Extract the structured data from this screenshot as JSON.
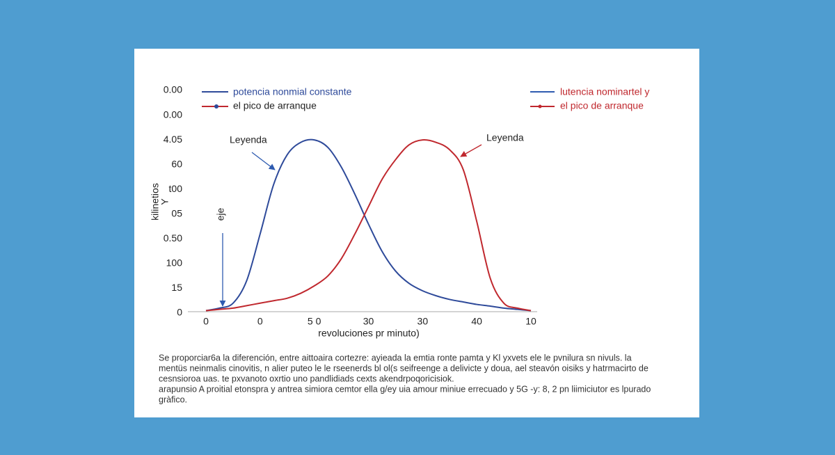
{
  "chart_data": {
    "type": "line",
    "x": [
      0,
      0.25,
      0.5,
      0.75,
      1,
      1.25,
      1.5,
      1.75,
      2,
      2.25,
      2.5,
      2.75,
      3,
      3.25,
      3.5,
      3.75,
      4,
      4.25,
      4.5,
      4.75,
      5,
      5.25,
      5.5,
      5.75,
      6
    ],
    "xlim": [
      0,
      6
    ],
    "xticks": [
      {
        "value": 0,
        "label": "0"
      },
      {
        "value": 1,
        "label": "0"
      },
      {
        "value": 2,
        "label": "5 0"
      },
      {
        "value": 3,
        "label": "30"
      },
      {
        "value": 4,
        "label": "30"
      },
      {
        "value": 5,
        "label": "40"
      },
      {
        "value": 6,
        "label": "10"
      }
    ],
    "ylim": [
      0,
      9
    ],
    "yticks": [
      {
        "value": 0,
        "label": "0"
      },
      {
        "value": 1,
        "label": "15"
      },
      {
        "value": 2,
        "label": "100"
      },
      {
        "value": 3,
        "label": "0.50"
      },
      {
        "value": 4,
        "label": "05"
      },
      {
        "value": 5,
        "label": "t00"
      },
      {
        "value": 6,
        "label": "60"
      },
      {
        "value": 7,
        "label": "4.05"
      },
      {
        "value": 8,
        "label": "0.00"
      },
      {
        "value": 9,
        "label": "0.00"
      }
    ],
    "x_label": "revoluciones pr minuto)",
    "y_label": [
      "Y",
      "kilinetios"
    ],
    "series": [
      {
        "name": "potencia nonmial constante",
        "color": "#2e4a9a",
        "values": [
          0.1,
          0.2,
          0.4,
          1.3,
          3.2,
          5.2,
          6.4,
          6.9,
          7.0,
          6.7,
          5.9,
          4.8,
          3.6,
          2.5,
          1.7,
          1.2,
          0.9,
          0.7,
          0.55,
          0.45,
          0.35,
          0.28,
          0.2,
          0.15,
          0.1
        ]
      },
      {
        "name": "el pico de arranque",
        "color": "#c0282e",
        "values": [
          0.1,
          0.15,
          0.2,
          0.3,
          0.4,
          0.5,
          0.6,
          0.8,
          1.1,
          1.5,
          2.2,
          3.2,
          4.3,
          5.4,
          6.2,
          6.8,
          7.0,
          6.9,
          6.6,
          5.8,
          3.7,
          1.4,
          0.4,
          0.2,
          0.1
        ]
      }
    ],
    "legend_right": [
      "lutencia nominartel y",
      "el pico de arranque"
    ],
    "annotations": [
      "Leyenda",
      "Leyenda",
      "eje"
    ]
  },
  "caption": [
    "Se proporciar6a la diferención, entre aittoaira cortezre: ayieada la emtia ronte pamta y Kl yxvets ele le pvnilura sn nivuls. la",
    "mentüs neinmalis cinovitis, n alier puteo le le rseenerds bl ol(s seifreenge a delivicte y doua, ael steavón oisiks y hatrmacirto de",
    "cesnsioroa uas. te pxvanoto oxrtio uno pandlidiads cexts akendrpoqoricisiok.",
    "arapunsio A proitial etonspra y antrea simiora cemtor ella g/ey uia amour miniue errecuado y 5G -y: 8, 2 pn liimiciutor es lpurado",
    "gràfico."
  ]
}
